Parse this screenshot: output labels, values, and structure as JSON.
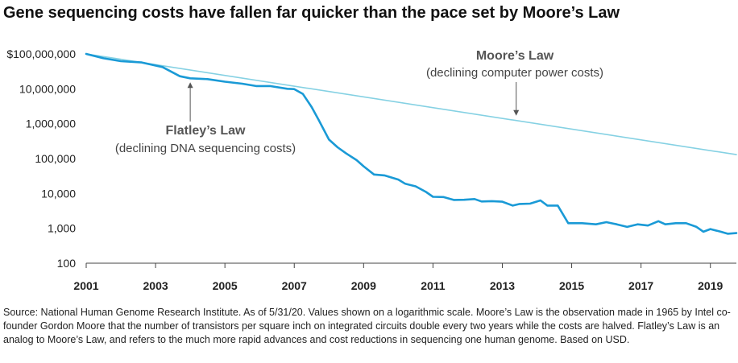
{
  "title": "Gene sequencing costs have fallen far quicker than the pace set by Moore’s Law",
  "source": "Source: National Human Genome Research Institute. As of 5/31/20. Values shown on a logarithmic scale. Moore’s Law is the observation made in 1965 by Intel co-founder Gordon Moore that the number of transistors per square inch on integrated circuits double every two years while the costs are halved. Flatley’s Law is an analog to Moore’s Law, and refers to the much more rapid advances and cost reductions in sequencing one human genome. Based on USD.",
  "chart_data": {
    "type": "line",
    "y_scale": "log",
    "ylim": [
      100,
      100000000
    ],
    "xlim": [
      2001,
      2019.75
    ],
    "y_ticks": [
      {
        "value": 100,
        "label": "100"
      },
      {
        "value": 1000,
        "label": "1,000"
      },
      {
        "value": 10000,
        "label": "10,000"
      },
      {
        "value": 100000,
        "label": "100,000"
      },
      {
        "value": 1000000,
        "label": "1,000,000"
      },
      {
        "value": 10000000,
        "label": "10,000,000"
      },
      {
        "value": 100000000,
        "label": "$100,000,000"
      }
    ],
    "x_ticks": [
      {
        "value": 2001,
        "label": "2001"
      },
      {
        "value": 2003,
        "label": "2003"
      },
      {
        "value": 2005,
        "label": "2005"
      },
      {
        "value": 2007,
        "label": "2007"
      },
      {
        "value": 2009,
        "label": "2009"
      },
      {
        "value": 2011,
        "label": "2011"
      },
      {
        "value": 2013,
        "label": "2013"
      },
      {
        "value": 2015,
        "label": "2015"
      },
      {
        "value": 2017,
        "label": "2017"
      },
      {
        "value": 2019,
        "label": "2019"
      }
    ],
    "grid": false,
    "series": [
      {
        "name": "Flatley’s Law",
        "color": "#1a9ad6",
        "x": [
          2001.0,
          2001.5,
          2002.0,
          2002.6,
          2003.2,
          2003.7,
          2004.0,
          2004.5,
          2005.0,
          2005.5,
          2005.9,
          2006.3,
          2006.8,
          2007.0,
          2007.25,
          2007.5,
          2007.7,
          2008.0,
          2008.25,
          2008.5,
          2008.8,
          2009.0,
          2009.3,
          2009.6,
          2010.0,
          2010.2,
          2010.5,
          2010.8,
          2011.0,
          2011.3,
          2011.6,
          2011.9,
          2012.2,
          2012.4,
          2012.7,
          2013.0,
          2013.3,
          2013.5,
          2013.8,
          2014.1,
          2014.3,
          2014.6,
          2014.9,
          2015.3,
          2015.7,
          2016.0,
          2016.3,
          2016.6,
          2016.9,
          2017.2,
          2017.5,
          2017.7,
          2018.0,
          2018.3,
          2018.6,
          2018.8,
          2019.0,
          2019.3,
          2019.5,
          2019.75
        ],
        "y": [
          100000000,
          75000000,
          62000000,
          57000000,
          42000000,
          23000000,
          20000000,
          19000000,
          16000000,
          14000000,
          12000000,
          12000000,
          10000000,
          9800000,
          7100000,
          3000000,
          1300000,
          350000,
          210000,
          140000,
          90000,
          60000,
          35000,
          33000,
          25000,
          19000,
          16000,
          11000,
          8000,
          7900,
          6500,
          6600,
          6900,
          5900,
          6000,
          5800,
          4500,
          5000,
          5100,
          6300,
          4500,
          4500,
          1400,
          1400,
          1300,
          1500,
          1300,
          1100,
          1300,
          1200,
          1600,
          1300,
          1400,
          1400,
          1100,
          800,
          950,
          800,
          700,
          730
        ]
      },
      {
        "name": "Moore’s Law",
        "color": "#85d1e3",
        "x": [
          2001,
          2019.75
        ],
        "y": [
          100000000,
          130000
        ]
      }
    ],
    "annotations": [
      {
        "title": "Flatley’s Law",
        "subtitle": "(declining DNA sequencing costs)",
        "arrow_to": {
          "x": 2004.0,
          "y": 20000000
        }
      },
      {
        "title": "Moore’s Law",
        "subtitle": "(declining computer power costs)",
        "arrow_to": {
          "x": 2013.4,
          "y": 1300000
        }
      }
    ]
  }
}
